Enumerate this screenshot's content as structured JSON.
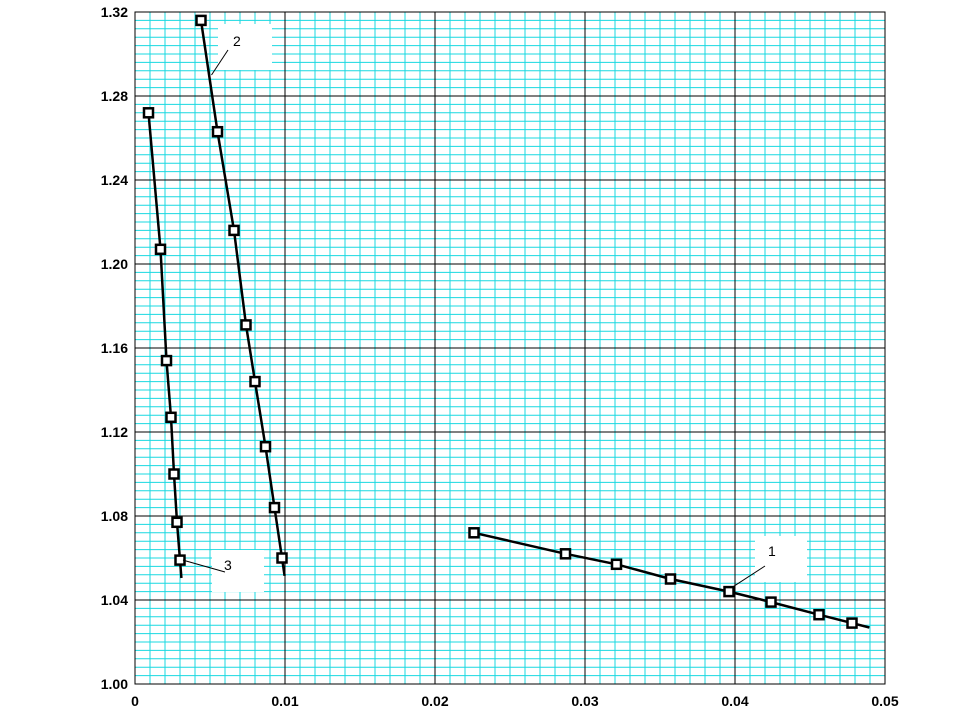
{
  "chart_data": {
    "type": "line",
    "title": "",
    "xlabel": "",
    "ylabel": "",
    "xlim": [
      0,
      0.05
    ],
    "ylim": [
      1.0,
      1.32
    ],
    "x_ticks": [
      "0",
      "0.01",
      "0.02",
      "0.03",
      "0.04",
      "0.05"
    ],
    "y_ticks": [
      "1.00",
      "1.04",
      "1.08",
      "1.12",
      "1.16",
      "1.20",
      "1.24",
      "1.28",
      "1.32"
    ],
    "grid": true,
    "colors": {
      "minor_grid": "#1ad8e0",
      "major_grid": "#000000",
      "series": "#000000",
      "background": "#ffffff"
    },
    "series": [
      {
        "name": "1",
        "x": [
          0.0226,
          0.0287,
          0.0321,
          0.0357,
          0.0396,
          0.0424,
          0.0456,
          0.0478
        ],
        "y": [
          1.072,
          1.062,
          1.057,
          1.05,
          1.044,
          1.039,
          1.033,
          1.029
        ]
      },
      {
        "name": "2",
        "x": [
          0.0044,
          0.0055,
          0.0066,
          0.0074,
          0.008,
          0.0087,
          0.0093,
          0.0098
        ],
        "y": [
          1.316,
          1.263,
          1.216,
          1.171,
          1.144,
          1.113,
          1.084,
          1.06
        ]
      },
      {
        "name": "3",
        "x": [
          0.0009,
          0.0017,
          0.0021,
          0.0024,
          0.0026,
          0.0028,
          0.003
        ],
        "y": [
          1.272,
          1.207,
          1.154,
          1.127,
          1.1,
          1.077,
          1.059
        ]
      }
    ]
  }
}
